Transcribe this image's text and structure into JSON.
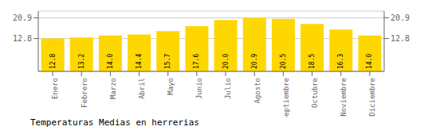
{
  "chart_data": {
    "type": "bar",
    "title": "Temperaturas Medias en herrerias",
    "categories": [
      "Enero",
      "Febrero",
      "Marzo",
      "Abril",
      "Mayo",
      "Junio",
      "Julio",
      "Agosto",
      "Septiembre",
      "Octubre",
      "Noviembre",
      "Diciembre"
    ],
    "values": [
      12.8,
      13.2,
      14.0,
      14.4,
      15.7,
      17.6,
      20.0,
      20.9,
      20.5,
      18.5,
      16.3,
      14.0
    ],
    "value_labels": [
      "12.8",
      "13.2",
      "14.0",
      "14.4",
      "15.7",
      "17.6",
      "20.0",
      "20.9",
      "20.5",
      "18.5",
      "16.3",
      "14.0"
    ],
    "color": "#FFD700",
    "ylim": [
      0,
      23.5
    ],
    "yticks": [
      12.8,
      20.9
    ],
    "grid": true,
    "data_labels": true
  }
}
